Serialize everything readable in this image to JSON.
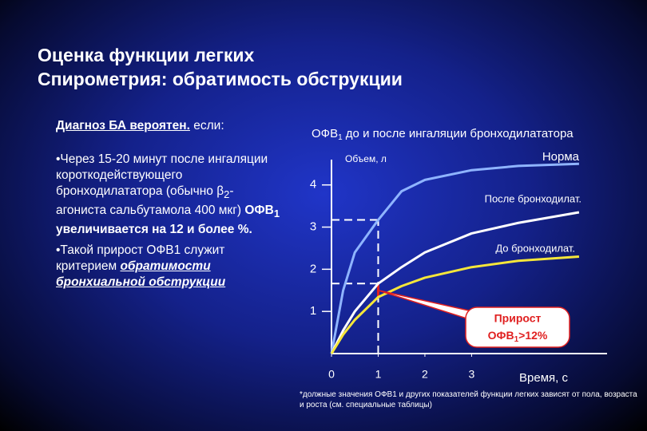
{
  "slide_title": [
    "Оценка функции легких",
    "Спирометрия: обратимость обструкции"
  ],
  "left": {
    "heading": "Диагноз БА вероятен.",
    "heading_suffix": "если:",
    "bullet1": [
      "•Через 15-20 минут после ингаляции короткодействующего бронходилататора (обычно β",
      "2",
      "-агониста сальбутамола 400 мкг) ",
      "ОФВ",
      "1",
      " увеличивается на 12 и более %."
    ],
    "bullet2": [
      "•Такой прирост ОФВ1 служит критерием ",
      "обратимости бронхиальной обструкции"
    ]
  },
  "chart_data": {
    "type": "line",
    "title": [
      "ОФВ",
      "1",
      " до и после ингаляции бронходилататора"
    ],
    "y_label": "Объем, л",
    "x_label": "Время, с",
    "xlim": [
      0,
      5.9
    ],
    "xticks": [
      0,
      1,
      2,
      3
    ],
    "ylim": [
      0,
      4.6
    ],
    "yticks": [
      1,
      2,
      3,
      4
    ],
    "x": [
      0,
      0.25,
      0.5,
      1,
      1.5,
      2,
      3,
      4,
      5.3
    ],
    "series": [
      {
        "name": "Норма",
        "color": "#8fb4ff",
        "values": [
          0,
          1.5,
          2.4,
          3.17,
          3.85,
          4.12,
          4.35,
          4.45,
          4.5
        ]
      },
      {
        "name": "После бронходилат.",
        "color": "#ffffff",
        "values": [
          0,
          0.55,
          1.0,
          1.66,
          2.05,
          2.4,
          2.85,
          3.1,
          3.35
        ]
      },
      {
        "name": "До бронходилат.",
        "color": "#f5e63a",
        "values": [
          0,
          0.45,
          0.8,
          1.34,
          1.6,
          1.8,
          2.05,
          2.2,
          2.3
        ]
      }
    ],
    "annotation": [
      "Прирост",
      "ОФВ",
      "1",
      ">12%"
    ],
    "footnote": "*должные значения ОФВ1 и других показателей функции легких зависят от пола, возраста и роста (см. специальные таблицы)"
  }
}
